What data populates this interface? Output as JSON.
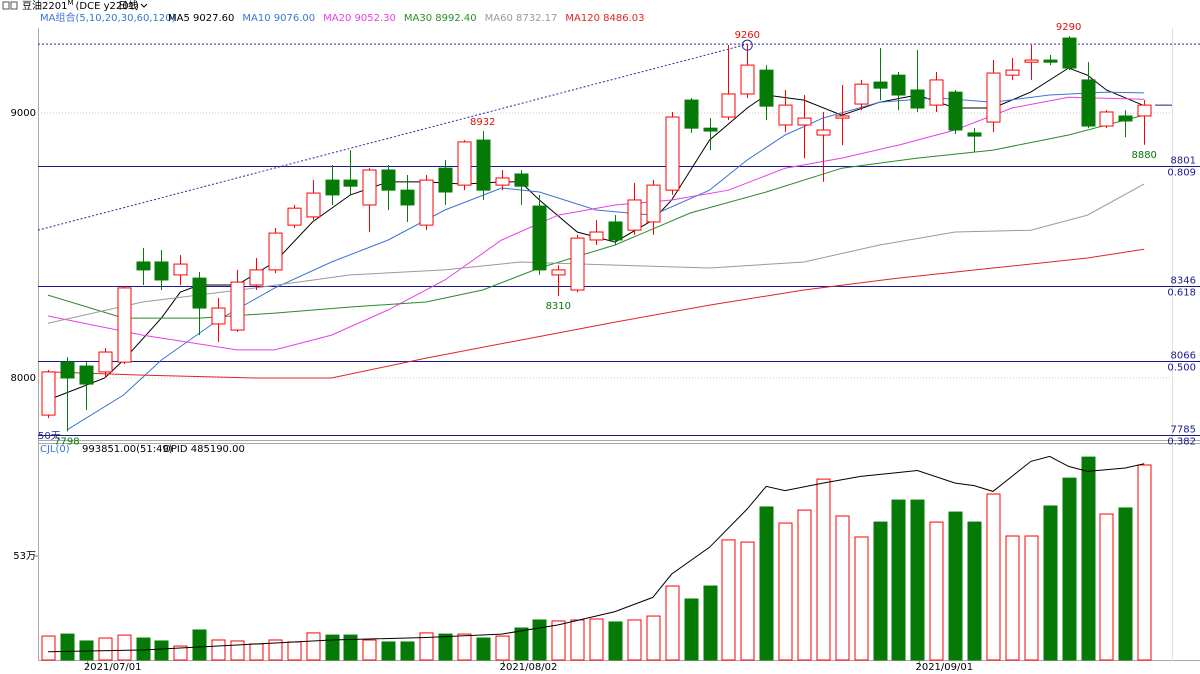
{
  "chart_data": [
    {
      "type": "candlestick",
      "title": "豆油2201",
      "title_sup": "M",
      "subtitle": "(DCE y2201)",
      "period": "日线",
      "indicator": "MA组合(5,10,20,30,60,120)",
      "note": "50天",
      "categories": [
        null,
        null,
        null,
        "2021/07/01",
        null,
        null,
        null,
        null,
        null,
        null,
        null,
        null,
        null,
        null,
        null,
        null,
        null,
        null,
        null,
        null,
        null,
        null,
        null,
        null,
        null,
        "2021/08/02",
        null,
        null,
        null,
        null,
        null,
        null,
        null,
        null,
        null,
        null,
        null,
        null,
        null,
        null,
        null,
        null,
        null,
        null,
        null,
        null,
        null,
        "2021/09/01",
        null,
        null,
        null,
        null,
        null,
        null,
        null,
        null,
        null,
        null,
        null
      ],
      "open": [
        7860,
        8060,
        8045,
        8023,
        8060,
        8438,
        8438,
        8389,
        8377,
        8204,
        8181,
        8351,
        8408,
        8577,
        8608,
        8747,
        8747,
        8653,
        8785,
        8709,
        8577,
        8792,
        8728,
        8898,
        8728,
        8770,
        8649,
        8389,
        8332,
        8521,
        8589,
        8558,
        8589,
        8709,
        9049,
        8943,
        8985,
        9072,
        9162,
        8955,
        8955,
        8917,
        8981,
        9034,
        9117,
        9143,
        9087,
        9030,
        9079,
        8925,
        8966,
        9143,
        9192,
        9200,
        9283,
        9125,
        8951,
        8989,
        8989
      ],
      "high": [
        8030,
        8079,
        8060,
        8113,
        8347,
        8491,
        8483,
        8464,
        8400,
        8302,
        8408,
        8453,
        8566,
        8653,
        8747,
        8804,
        8860,
        8792,
        8804,
        8766,
        8766,
        8823,
        8898,
        8932,
        8785,
        8785,
        8691,
        8426,
        8540,
        8596,
        8615,
        8736,
        8747,
        9004,
        9057,
        8981,
        9257,
        9260,
        9181,
        9087,
        9068,
        9004,
        9106,
        9125,
        9245,
        9155,
        9238,
        9155,
        9087,
        8943,
        9200,
        9208,
        9257,
        9219,
        9290,
        9192,
        9011,
        9011,
        9049
      ],
      "low": [
        7849,
        7798,
        7879,
        8000,
        8053,
        8351,
        8332,
        8351,
        8162,
        8136,
        8174,
        8332,
        8396,
        8566,
        8596,
        8653,
        8691,
        8551,
        8634,
        8589,
        8558,
        8653,
        8709,
        8672,
        8709,
        8653,
        8389,
        8310,
        8324,
        8502,
        8502,
        8540,
        8540,
        8691,
        8925,
        8860,
        8974,
        9057,
        8974,
        8928,
        8830,
        8740,
        8879,
        9011,
        9049,
        9011,
        9004,
        9004,
        8921,
        8853,
        8928,
        9125,
        9125,
        9181,
        9162,
        8943,
        8943,
        8909,
        8880
      ],
      "close": [
        8023,
        8000,
        7977,
        8098,
        8340,
        8408,
        8370,
        8430,
        8264,
        8264,
        8362,
        8408,
        8547,
        8641,
        8698,
        8691,
        8724,
        8785,
        8709,
        8653,
        8747,
        8702,
        8891,
        8709,
        8755,
        8724,
        8408,
        8408,
        8528,
        8551,
        8521,
        8672,
        8728,
        8985,
        8943,
        8932,
        9072,
        9181,
        9026,
        9030,
        8981,
        8936,
        8989,
        9109,
        9094,
        9068,
        9019,
        9125,
        8936,
        8913,
        9151,
        9162,
        9200,
        9192,
        9170,
        8951,
        9004,
        8970,
        9030
      ],
      "up_color": "#ff0000",
      "down_color": "#067a06",
      "ylim": [
        7766,
        9321
      ],
      "yticks": [
        8000,
        9000
      ],
      "grid": true,
      "ma": [
        {
          "name": "MA5",
          "value_label": "9027.60",
          "color": "#000000",
          "x": [
            0,
            3,
            4,
            6,
            7,
            8,
            10,
            12,
            14,
            16,
            18,
            20,
            22,
            24,
            25,
            26,
            28,
            30,
            32,
            33,
            35,
            37,
            38,
            40,
            42,
            44,
            46,
            48,
            50,
            52,
            54,
            55,
            56,
            58
          ],
          "values": [
            7917,
            8000,
            8068,
            8226,
            8324,
            8351,
            8351,
            8438,
            8589,
            8691,
            8740,
            8740,
            8732,
            8740,
            8740,
            8672,
            8551,
            8513,
            8596,
            8672,
            8898,
            9019,
            9068,
            9049,
            8992,
            9041,
            9068,
            9019,
            9019,
            9079,
            9170,
            9143,
            9087,
            9027.6
          ]
        },
        {
          "name": "MA10",
          "value_label": "9076.00",
          "color": "#3a74d6",
          "x": [
            1,
            4,
            6,
            9,
            12,
            15,
            18,
            21,
            24,
            26,
            29,
            32,
            35,
            37,
            39,
            41,
            44,
            47,
            50,
            53,
            56,
            58
          ],
          "values": [
            7804,
            7936,
            8068,
            8219,
            8340,
            8438,
            8521,
            8634,
            8717,
            8702,
            8634,
            8615,
            8709,
            8823,
            8917,
            8981,
            9041,
            9057,
            9041,
            9068,
            9079,
            9076
          ]
        },
        {
          "name": "MA20",
          "value_label": "9052.30",
          "color": "#e83ee8",
          "x": [
            0,
            5,
            10,
            12,
            15,
            18,
            21,
            24,
            27,
            30,
            33,
            36,
            39,
            42,
            45,
            48,
            51,
            54,
            58
          ],
          "values": [
            8234,
            8162,
            8106,
            8106,
            8162,
            8257,
            8370,
            8521,
            8615,
            8653,
            8672,
            8709,
            8792,
            8830,
            8879,
            8936,
            9019,
            9060,
            9052.3
          ]
        },
        {
          "name": "MA30",
          "value_label": "8992.40",
          "color": "#2a8a2a",
          "x": [
            0,
            4,
            8,
            12,
            16,
            20,
            23,
            26,
            30,
            34,
            38,
            42,
            46,
            50,
            54,
            58
          ],
          "values": [
            8313,
            8226,
            8226,
            8245,
            8268,
            8287,
            8332,
            8415,
            8502,
            8623,
            8702,
            8792,
            8830,
            8860,
            8917,
            8992.4
          ]
        },
        {
          "name": "MA60",
          "value_label": "8732.17",
          "color": "#9a9a9a",
          "x": [
            0,
            5,
            11,
            16,
            21,
            25,
            30,
            35,
            40,
            44,
            48,
            52,
            55,
            58
          ],
          "values": [
            8207,
            8287,
            8340,
            8389,
            8408,
            8438,
            8426,
            8415,
            8438,
            8502,
            8551,
            8558,
            8615,
            8732.17
          ]
        },
        {
          "name": "MA120",
          "value_label": "8486.03",
          "color": "#e02424",
          "x": [
            0,
            5,
            11,
            15,
            20,
            25,
            30,
            35,
            40,
            45,
            50,
            55,
            58
          ],
          "values": [
            8023,
            8011,
            8000,
            8000,
            8075,
            8143,
            8211,
            8275,
            8332,
            8377,
            8415,
            8453,
            8486.03
          ]
        }
      ],
      "levels": [
        {
          "value": 8801,
          "ratio": "0.809"
        },
        {
          "value": 8346,
          "ratio": "0.618"
        },
        {
          "value": 8066,
          "ratio": "0.500"
        },
        {
          "value": 7785,
          "ratio": "0.382"
        }
      ],
      "ref_line": 9260,
      "trendline": {
        "x": [
          -0.53,
          37
        ],
        "values": [
          8558,
          9260
        ]
      },
      "annotations": [
        {
          "index": 37,
          "value": 9260,
          "circle": true
        },
        {
          "index": 54,
          "value": 9290
        },
        {
          "index": 23,
          "value": 8932
        },
        {
          "index": 27,
          "value": 8310
        },
        {
          "index": 58,
          "value": 8880
        },
        {
          "index": 1,
          "value": 7798
        }
      ]
    },
    {
      "type": "bar",
      "indicator": "CJL(0)",
      "value_label": "993851.00(51:49)",
      "values": [
        122000,
        132000,
        97000,
        112000,
        127000,
        112000,
        97000,
        71000,
        153000,
        102000,
        97000,
        82000,
        102000,
        92000,
        138000,
        127000,
        127000,
        102000,
        92000,
        92000,
        138000,
        132000,
        132000,
        112000,
        122000,
        163000,
        204000,
        199000,
        204000,
        209000,
        194000,
        204000,
        224000,
        377000,
        311000,
        377000,
        612000,
        601000,
        780000,
        698000,
        764000,
        922000,
        734000,
        627000,
        703000,
        815000,
        815000,
        703000,
        754000,
        703000,
        846000,
        632000,
        632000,
        785000,
        927000,
        1034000,
        744000,
        775000,
        993851
      ],
      "ylim": [
        0,
        1106000
      ],
      "yticks": [
        {
          "value": 530000,
          "label": "53万"
        }
      ],
      "line": {
        "name": "OPID",
        "value_label": "485190.00",
        "color": "#000000",
        "axis": "y2",
        "x": [
          0,
          5,
          10,
          15,
          20,
          24,
          27,
          30,
          32,
          33,
          35,
          37,
          38,
          39,
          41,
          43,
          46,
          48,
          49,
          50,
          52,
          53,
          54,
          55,
          57,
          58
        ],
        "values": [
          260000,
          262000,
          268000,
          274000,
          277000,
          281000,
          292000,
          308000,
          325000,
          353000,
          385000,
          431000,
          458000,
          453000,
          462000,
          470000,
          477000,
          462000,
          459000,
          452000,
          488000,
          494000,
          482000,
          476000,
          480000,
          485190
        ]
      },
      "y2lim": [
        250000,
        510000
      ]
    }
  ]
}
